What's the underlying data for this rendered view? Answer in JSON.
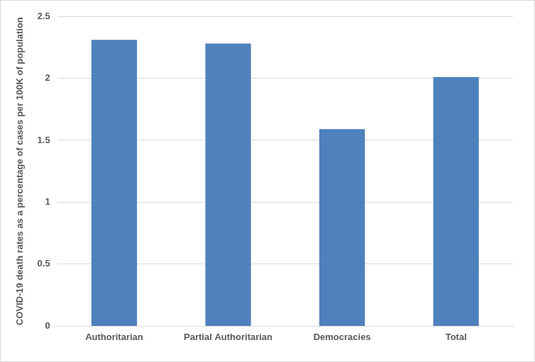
{
  "chart_data": {
    "type": "bar",
    "y_label": "COVID-19 death rates as a percentage of cases per 100K of population",
    "categories": [
      "Authoritarian",
      "Partial Authoritarian",
      "Democracies",
      "Total"
    ],
    "values": [
      2.31,
      2.28,
      1.59,
      2.01
    ],
    "color": "#4f81bd",
    "ylim": [
      0,
      2.5
    ],
    "yticks": [
      0,
      0.5,
      1,
      1.5,
      2,
      2.5
    ],
    "grid": true
  }
}
